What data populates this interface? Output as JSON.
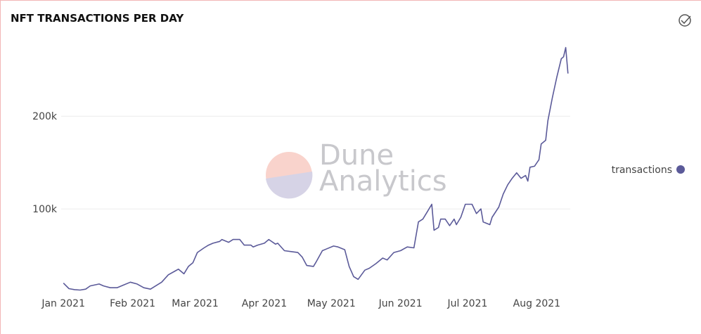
{
  "chart_data": {
    "type": "line",
    "title": "NFT TRANSACTIONS PER DAY",
    "watermark": [
      "Dune",
      "Analytics"
    ],
    "x": [
      0,
      2.5,
      5,
      7.5,
      10,
      12,
      16,
      18,
      21,
      24,
      27,
      30,
      33,
      36,
      39,
      41,
      44,
      47,
      50,
      51.5,
      54,
      56,
      58,
      60,
      63,
      65,
      67,
      70,
      71,
      74,
      76,
      79,
      81,
      84,
      85,
      87,
      90,
      92,
      95,
      96,
      99,
      102,
      105,
      107,
      109,
      112,
      113,
      116,
      118,
      121,
      123,
      126,
      128,
      130,
      132,
      135,
      137,
      140,
      143,
      145,
      148,
      151,
      154,
      157,
      159,
      161,
      163,
      165,
      166,
      168,
      169,
      171,
      173,
      175,
      176,
      178,
      180,
      183,
      185,
      187,
      188,
      191,
      192,
      195,
      197,
      199,
      201,
      203,
      205,
      207,
      208,
      209,
      211,
      213,
      214,
      216,
      217,
      219,
      221,
      223,
      224,
      225,
      226
    ],
    "series": [
      {
        "name": "transactions",
        "color": "#5b5a99",
        "values": [
          20000,
          14000,
          13000,
          12500,
          13500,
          17000,
          19000,
          17000,
          15000,
          15000,
          18000,
          21000,
          19000,
          15000,
          13500,
          16500,
          21000,
          29000,
          33000,
          35000,
          30000,
          38000,
          42000,
          53000,
          58000,
          61000,
          63000,
          65000,
          67000,
          64000,
          67000,
          67000,
          61000,
          61000,
          59000,
          61000,
          63000,
          67000,
          62000,
          63000,
          55000,
          54000,
          53000,
          48000,
          39000,
          38000,
          42000,
          55000,
          57000,
          60000,
          59000,
          56000,
          38000,
          27000,
          24000,
          34000,
          36000,
          41000,
          47000,
          45000,
          53000,
          55000,
          59000,
          58000,
          86000,
          89000,
          97000,
          105000,
          77000,
          80000,
          89000,
          89000,
          82000,
          89000,
          83000,
          91000,
          105000,
          105000,
          95000,
          100000,
          86000,
          83000,
          91000,
          102000,
          116000,
          126000,
          133000,
          139000,
          133000,
          136000,
          130000,
          145000,
          146000,
          153000,
          170000,
          174000,
          195000,
          220000,
          242000,
          262000,
          264000,
          274000,
          246000
        ]
      }
    ],
    "xlim": [
      -1,
      227
    ],
    "xticks": [
      {
        "value": 0,
        "label": "Jan 2021"
      },
      {
        "value": 31,
        "label": "Feb 2021"
      },
      {
        "value": 59,
        "label": "Mar 2021"
      },
      {
        "value": 90,
        "label": "Apr 2021"
      },
      {
        "value": 120,
        "label": "May 2021"
      },
      {
        "value": 151,
        "label": "Jun 2021"
      },
      {
        "value": 181,
        "label": "Jul 2021"
      },
      {
        "value": 212,
        "label": "Aug 2021"
      }
    ],
    "ylim": [
      0,
      276000
    ],
    "yticks": [
      {
        "value": 100000,
        "label": "100k"
      },
      {
        "value": 200000,
        "label": "200k"
      }
    ],
    "grid": true,
    "legend": "right"
  }
}
